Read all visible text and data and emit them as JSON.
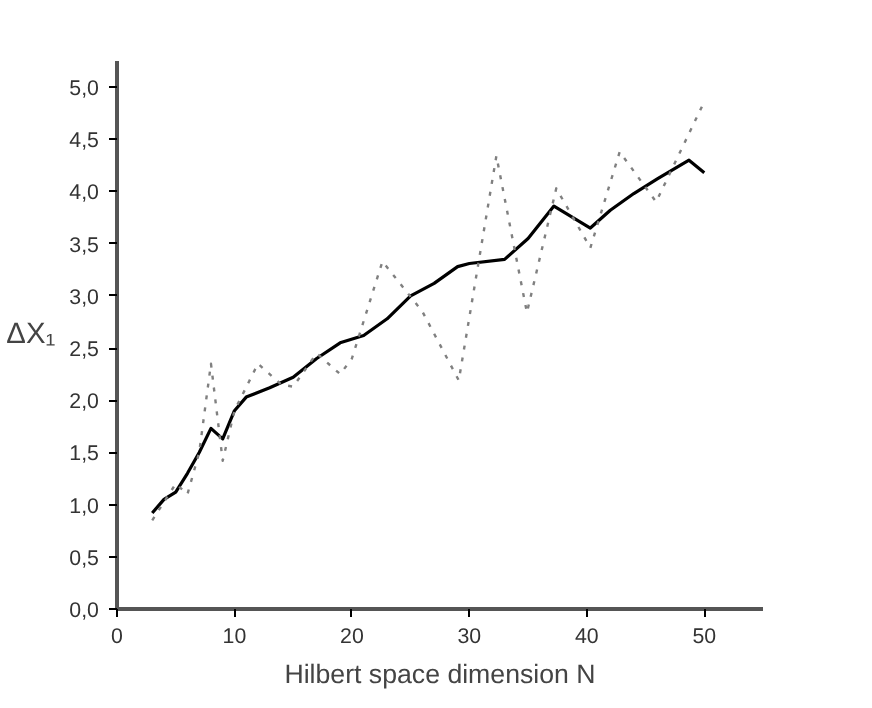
{
  "chart_data": {
    "type": "line",
    "xlabel": "Hilbert space dimension N",
    "ylabel": "ΔX₁",
    "xlim": [
      0,
      55
    ],
    "ylim": [
      0,
      5.25
    ],
    "xticks": [
      0,
      10,
      20,
      30,
      40,
      50
    ],
    "yticks": [
      {
        "value": 0,
        "label": "0,0"
      },
      {
        "value": 0.5,
        "label": "0,5"
      },
      {
        "value": 1,
        "label": "1,0"
      },
      {
        "value": 1.5,
        "label": "1,5"
      },
      {
        "value": 2,
        "label": "2,0"
      },
      {
        "value": 2.5,
        "label": "2,5"
      },
      {
        "value": 3,
        "label": "3,0"
      },
      {
        "value": 3.5,
        "label": "3,5"
      },
      {
        "value": 4,
        "label": "4,0"
      },
      {
        "value": 4.5,
        "label": "4,5"
      },
      {
        "value": 5,
        "label": "5,0"
      }
    ],
    "grid": false,
    "series": [
      {
        "color": "#000000",
        "line_style": "solid",
        "x": [
          3,
          4,
          5,
          6,
          7,
          8,
          9,
          10,
          11,
          13,
          15,
          17,
          19,
          21,
          23,
          25,
          27,
          29,
          30,
          33,
          35,
          37.2,
          40.3,
          42,
          44,
          46,
          48.7,
          50
        ],
        "values": [
          0.92,
          1.05,
          1.12,
          1.3,
          1.5,
          1.73,
          1.63,
          1.9,
          2.03,
          2.12,
          2.22,
          2.4,
          2.55,
          2.62,
          2.78,
          3.0,
          3.12,
          3.28,
          3.31,
          3.35,
          3.55,
          3.86,
          3.65,
          3.82,
          3.98,
          4.12,
          4.3,
          4.18
        ]
      },
      {
        "color": "#808080",
        "line_style": "dotted",
        "x": [
          3,
          5,
          6,
          7,
          8,
          9,
          10,
          12,
          14,
          15,
          17,
          19,
          20,
          22.6,
          26,
          29.1,
          32.3,
          34.9,
          37.4,
          40.3,
          42.8,
          45.9,
          50
        ],
        "values": [
          0.85,
          1.2,
          1.1,
          1.5,
          2.35,
          1.42,
          1.9,
          2.35,
          2.15,
          2.13,
          2.45,
          2.25,
          2.4,
          3.33,
          2.85,
          2.19,
          4.34,
          2.84,
          4.03,
          3.46,
          4.38,
          3.9,
          4.86
        ]
      }
    ]
  }
}
